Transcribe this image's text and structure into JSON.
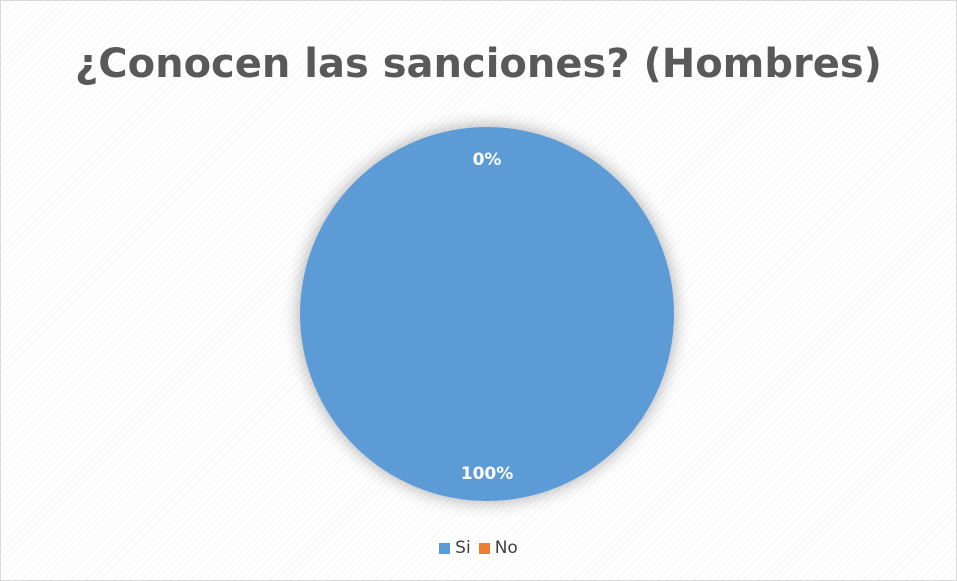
{
  "chart_data": {
    "type": "pie",
    "title": "¿Conocen las sanciones? (Hombres)",
    "categories": [
      "Si",
      "No"
    ],
    "values": [
      100,
      0
    ],
    "data_labels": [
      "100%",
      "0%"
    ],
    "colors": [
      "#5b9bd5",
      "#ed7d31"
    ],
    "legend_position": "bottom"
  }
}
